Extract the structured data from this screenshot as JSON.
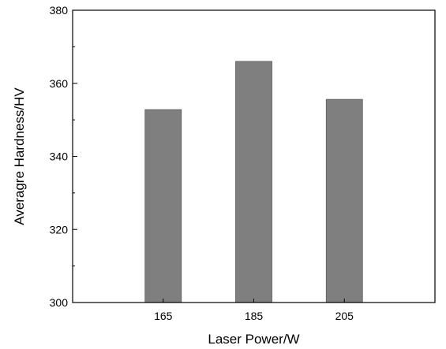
{
  "chart_data": {
    "type": "bar",
    "categories": [
      "165",
      "185",
      "205"
    ],
    "values": [
      352.8,
      366.0,
      355.6
    ],
    "xlabel": "Laser Power/W",
    "ylabel": "Averagre Hardness/HV",
    "ylim": [
      300,
      380
    ],
    "yticks": [
      300,
      320,
      340,
      360,
      380
    ],
    "grid": false,
    "legend": "none",
    "colors": {
      "bar": "#7f7f7f",
      "bar_stroke": "#5a5a5a",
      "axis": "#000000"
    }
  }
}
